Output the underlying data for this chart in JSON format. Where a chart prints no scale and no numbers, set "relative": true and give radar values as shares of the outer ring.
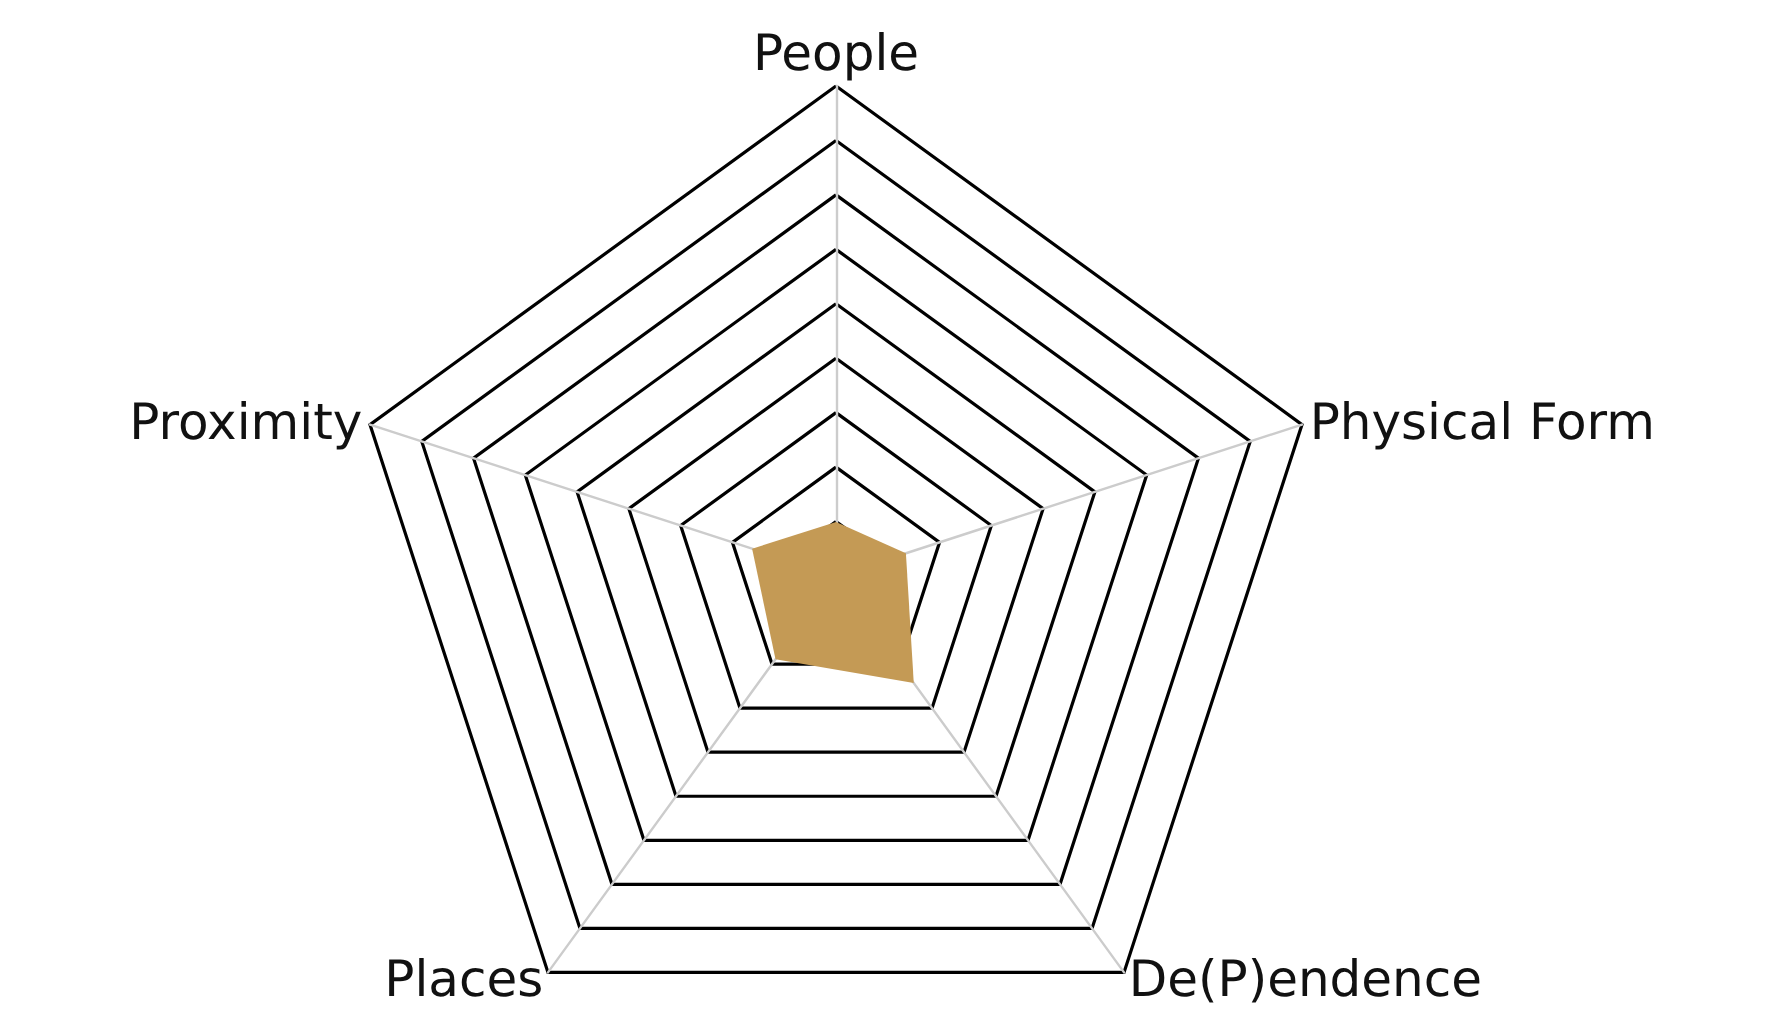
{
  "chart_data": {
    "type": "radar",
    "relative": true,
    "categories": [
      "People",
      "Physical Form",
      "De(P)endence",
      "Places",
      "Proximity"
    ],
    "series": [
      {
        "color": "#c49a55",
        "values": [
          0.11,
          0.15,
          0.27,
          0.21,
          0.18
        ]
      }
    ]
  }
}
